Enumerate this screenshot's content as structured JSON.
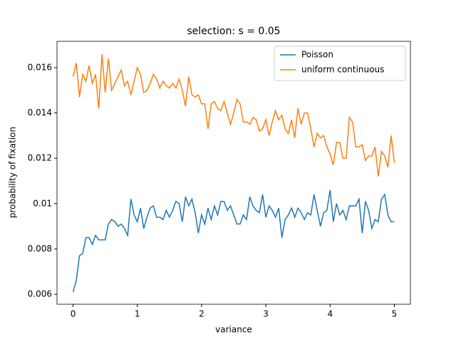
{
  "chart_data": {
    "type": "line",
    "title": "selection: s = 0.05",
    "xlabel": "variance",
    "ylabel": "probability of fixation",
    "x": [
      0,
      0.05,
      0.1,
      0.15,
      0.2,
      0.25,
      0.3,
      0.35,
      0.4,
      0.45,
      0.5,
      0.55,
      0.6,
      0.65,
      0.7,
      0.75,
      0.8,
      0.85,
      0.9,
      0.95,
      1,
      1.05,
      1.1,
      1.15,
      1.2,
      1.25,
      1.3,
      1.35,
      1.4,
      1.45,
      1.5,
      1.55,
      1.6,
      1.65,
      1.7,
      1.75,
      1.8,
      1.85,
      1.9,
      1.95,
      2,
      2.05,
      2.1,
      2.15,
      2.2,
      2.25,
      2.3,
      2.35,
      2.4,
      2.45,
      2.5,
      2.55,
      2.6,
      2.65,
      2.7,
      2.75,
      2.8,
      2.85,
      2.9,
      2.95,
      3,
      3.05,
      3.1,
      3.15,
      3.2,
      3.25,
      3.3,
      3.35,
      3.4,
      3.45,
      3.5,
      3.55,
      3.6,
      3.65,
      3.7,
      3.75,
      3.8,
      3.85,
      3.9,
      3.95,
      4,
      4.05,
      4.1,
      4.15,
      4.2,
      4.25,
      4.3,
      4.35,
      4.4,
      4.45,
      4.5,
      4.55,
      4.6,
      4.65,
      4.7,
      4.75,
      4.8,
      4.85,
      4.9,
      4.95,
      5
    ],
    "series": [
      {
        "name": "Poisson",
        "color": "#1f77b4",
        "values": [
          0.0061,
          0.0066,
          0.0077,
          0.0078,
          0.0085,
          0.0085,
          0.0082,
          0.0086,
          0.0084,
          0.0084,
          0.0084,
          0.0091,
          0.0093,
          0.0092,
          0.009,
          0.0091,
          0.0089,
          0.0086,
          0.0102,
          0.0095,
          0.0092,
          0.0098,
          0.0089,
          0.0094,
          0.0098,
          0.0099,
          0.0094,
          0.0094,
          0.0093,
          0.0097,
          0.0094,
          0.0097,
          0.0101,
          0.01,
          0.0092,
          0.0103,
          0.0099,
          0.0102,
          0.0096,
          0.0087,
          0.0095,
          0.0091,
          0.0098,
          0.0093,
          0.0099,
          0.0095,
          0.0101,
          0.0101,
          0.0097,
          0.0099,
          0.0095,
          0.0091,
          0.0091,
          0.0095,
          0.0093,
          0.0103,
          0.0099,
          0.0097,
          0.0096,
          0.0104,
          0.0094,
          0.0099,
          0.0097,
          0.0094,
          0.0098,
          0.0085,
          0.0093,
          0.0095,
          0.0098,
          0.0094,
          0.0098,
          0.0096,
          0.0093,
          0.0096,
          0.0095,
          0.0104,
          0.0097,
          0.009,
          0.0096,
          0.0097,
          0.0106,
          0.0092,
          0.01,
          0.0095,
          0.0097,
          0.0093,
          0.0099,
          0.0099,
          0.0099,
          0.0102,
          0.0087,
          0.0101,
          0.0097,
          0.0089,
          0.0093,
          0.0092,
          0.0102,
          0.0104,
          0.0095,
          0.0092,
          0.0092
        ]
      },
      {
        "name": "uniform continuous",
        "color": "#ff7f0e",
        "values": [
          0.0156,
          0.0162,
          0.0147,
          0.0157,
          0.0154,
          0.0161,
          0.0153,
          0.0157,
          0.0142,
          0.0166,
          0.0149,
          0.0164,
          0.015,
          0.0153,
          0.0156,
          0.0159,
          0.0152,
          0.0154,
          0.0148,
          0.0154,
          0.016,
          0.0157,
          0.0149,
          0.015,
          0.0153,
          0.0157,
          0.0155,
          0.0151,
          0.0154,
          0.0152,
          0.0151,
          0.0153,
          0.0151,
          0.0155,
          0.015,
          0.0143,
          0.0156,
          0.0148,
          0.0147,
          0.0148,
          0.0144,
          0.0144,
          0.0133,
          0.0144,
          0.0145,
          0.0142,
          0.0141,
          0.0145,
          0.014,
          0.0135,
          0.014,
          0.0146,
          0.0144,
          0.0136,
          0.0136,
          0.0135,
          0.0138,
          0.0137,
          0.0132,
          0.0133,
          0.0137,
          0.013,
          0.0136,
          0.0141,
          0.0137,
          0.0139,
          0.0133,
          0.0131,
          0.0137,
          0.0129,
          0.0142,
          0.0135,
          0.014,
          0.014,
          0.0133,
          0.0125,
          0.0131,
          0.0129,
          0.013,
          0.0125,
          0.0122,
          0.0117,
          0.0127,
          0.0127,
          0.012,
          0.012,
          0.0138,
          0.0136,
          0.0125,
          0.0125,
          0.0126,
          0.0119,
          0.0121,
          0.0121,
          0.0125,
          0.0112,
          0.0123,
          0.0121,
          0.0116,
          0.013,
          0.0118
        ]
      }
    ],
    "xlim": [
      -0.25,
      5.25
    ],
    "xticks": [
      0,
      1,
      2,
      3,
      4,
      5
    ],
    "ylim": [
      0.00556,
      0.01716
    ],
    "yticks": [
      0.006,
      0.008,
      0.01,
      0.012,
      0.014,
      0.016
    ],
    "legend": "upper right",
    "grid": false
  }
}
